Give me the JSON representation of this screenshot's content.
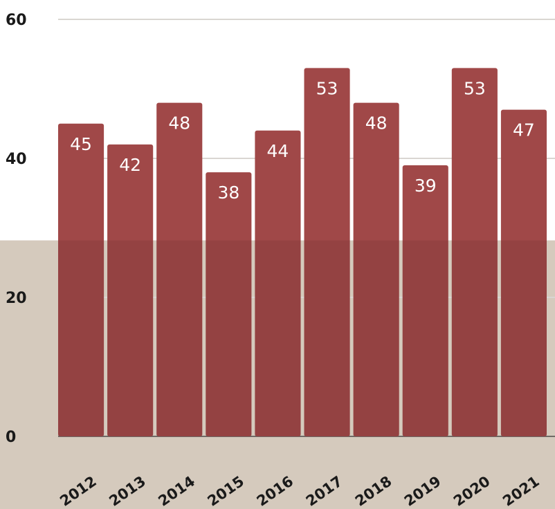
{
  "chart_data": {
    "type": "bar",
    "categories": [
      "2012",
      "2013",
      "2014",
      "2015",
      "2016",
      "2017",
      "2018",
      "2019",
      "2020",
      "2021"
    ],
    "values": [
      45,
      42,
      48,
      38,
      44,
      53,
      48,
      39,
      53,
      47
    ],
    "title": "",
    "xlabel": "",
    "ylabel": "",
    "ylim": [
      0,
      60
    ],
    "yticks": [
      "0",
      "20",
      "40",
      "60"
    ],
    "grid": true,
    "legend": "none",
    "bar_color": "#a04848",
    "gridline_color": "#d9d6d2",
    "lower_band_color": "#d5cabd",
    "lower_band_top_value": 28.2
  }
}
